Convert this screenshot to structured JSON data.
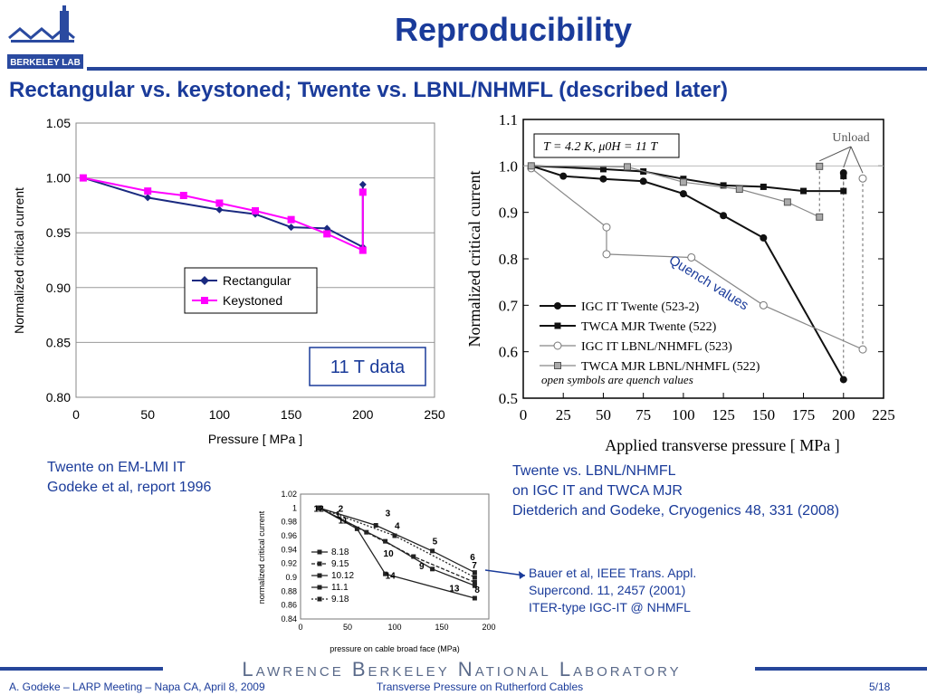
{
  "header": {
    "title": "Reproducibility",
    "subtitle": "Rectangular vs. keystoned; Twente vs. LBNL/NHMFL (described later)",
    "logo_text": "BERKELEY LAB"
  },
  "captions": {
    "twente_1": "Twente on EM-LMI IT",
    "twente_2": "Godeke et al, report 1996",
    "lbnl_1": "Twente vs. LBNL/NHMFL",
    "lbnl_2": "on IGC IT and TWCA MJR",
    "lbnl_3": "Dietderich and Godeke, Cryogenics 48, 331 (2008)",
    "bauer_1": "Bauer et al, IEEE Trans. Appl.",
    "bauer_2": "Supercond. 11, 2457 (2001)",
    "bauer_3": "ITER-type IGC-IT @ NHMFL"
  },
  "footer": {
    "lab_name": "Lawrence Berkeley National Laboratory",
    "left": "A. Godeke – LARP Meeting – Napa CA, April 8, 2009",
    "middle": "Transverse Pressure on Rutherford Cables",
    "right": "5/18"
  },
  "colors": {
    "accent": "#1a3b9a",
    "rectangular": "#1a2a80",
    "keystoned": "#ff00ff"
  },
  "chart_data": [
    {
      "type": "line",
      "ylabel": "Normalized critical current",
      "xlabel": "Pressure [ MPa ]",
      "xlim": [
        0,
        250
      ],
      "ylim": [
        0.8,
        1.05
      ],
      "xticks": [
        "0",
        "50",
        "100",
        "150",
        "200",
        "250"
      ],
      "yticks": [
        "0.80",
        "0.85",
        "0.90",
        "0.95",
        "1.00",
        "1.05"
      ],
      "legend": "center-right",
      "annotation": "11 T data",
      "series": [
        {
          "name": "Rectangular",
          "color": "#1a2a80",
          "marker": "diamond",
          "x": [
            5,
            50,
            100,
            125,
            150,
            175,
            200
          ],
          "y": [
            1.0,
            0.982,
            0.971,
            0.967,
            0.955,
            0.954,
            0.937
          ],
          "unload": {
            "x": 200,
            "y": 0.994
          }
        },
        {
          "name": "Keystoned",
          "color": "#ff00ff",
          "marker": "square",
          "x": [
            5,
            50,
            75,
            100,
            125,
            150,
            175,
            200
          ],
          "y": [
            1.0,
            0.988,
            0.984,
            0.977,
            0.97,
            0.962,
            0.949,
            0.934
          ],
          "unload": {
            "x": 200,
            "y": 0.987
          }
        }
      ]
    },
    {
      "type": "line",
      "ylabel": "Normalized critical current",
      "xlabel": "Applied transverse pressure [ MPa ]",
      "xlim": [
        0,
        225
      ],
      "ylim": [
        0.5,
        1.1
      ],
      "xticks": [
        "0",
        "25",
        "50",
        "75",
        "100",
        "125",
        "150",
        "175",
        "200",
        "225"
      ],
      "yticks": [
        "0.5",
        "0.6",
        "0.7",
        "0.8",
        "0.9",
        "1.0",
        "1.1"
      ],
      "condition": "T = 4.2 K, μ0H = 11 T",
      "unload_label": "Unload",
      "quench_label": "Quench values",
      "legend_note": "open symbols are quench values",
      "series": [
        {
          "name": "IGC IT Twente (523-2)",
          "marker": "circle-filled",
          "color": "#111111",
          "x": [
            5,
            25,
            50,
            75,
            100,
            125,
            150,
            200
          ],
          "y": [
            1.0,
            0.978,
            0.972,
            0.967,
            0.94,
            0.893,
            0.845,
            0.54
          ],
          "unload": {
            "x": 200,
            "y": 0.985
          }
        },
        {
          "name": "TWCA MJR Twente (522)",
          "marker": "square-filled",
          "color": "#111111",
          "x": [
            5,
            50,
            75,
            100,
            125,
            150,
            175,
            200
          ],
          "y": [
            1.0,
            0.993,
            0.988,
            0.972,
            0.958,
            0.955,
            0.946,
            0.946
          ],
          "unload": {
            "x": 200,
            "y": 0.978
          }
        },
        {
          "name": "IGC IT LBNL/NHMFL (523)",
          "marker": "circle-open",
          "color": "#888888",
          "x": [
            5,
            52,
            52,
            105,
            150,
            212
          ],
          "y": [
            0.995,
            0.868,
            0.81,
            0.803,
            0.7,
            0.605
          ],
          "unload": {
            "x": 212,
            "y": 0.973
          }
        },
        {
          "name": "TWCA MJR LBNL/NHMFL (522)",
          "marker": "square-gray",
          "color": "#888888",
          "x": [
            5,
            65,
            100,
            135,
            165,
            185
          ],
          "y": [
            1.0,
            0.998,
            0.965,
            0.95,
            0.922,
            0.89
          ],
          "unload": {
            "x": 185,
            "y": 0.999
          }
        }
      ]
    },
    {
      "type": "line",
      "ylabel": "normalized critical current",
      "xlabel": "pressure on cable broad face (MPa)",
      "xlim": [
        0,
        200
      ],
      "ylim": [
        0.84,
        1.02
      ],
      "xticks": [
        "0",
        "50",
        "100",
        "150",
        "200"
      ],
      "yticks": [
        "0.84",
        "0.86",
        "0.88",
        "0.9",
        "0.92",
        "0.94",
        "0.96",
        "0.98",
        "1",
        "1.02"
      ],
      "legend": "left",
      "point_labels": [
        "12",
        "2",
        "3",
        "4",
        "5",
        "6",
        "7",
        "8",
        "9",
        "10",
        "11",
        "13",
        "14",
        "1"
      ],
      "series": [
        {
          "name": "8.18",
          "x": [
            20,
            80,
            140,
            185
          ],
          "y": [
            1.0,
            0.975,
            0.938,
            0.907
          ]
        },
        {
          "name": "9.15",
          "x": [
            20,
            70,
            120,
            185
          ],
          "y": [
            1.0,
            0.965,
            0.93,
            0.893
          ]
        },
        {
          "name": "10.12",
          "x": [
            20,
            90,
            140,
            185
          ],
          "y": [
            1.0,
            0.952,
            0.912,
            0.888
          ]
        },
        {
          "name": "11.1",
          "x": [
            20,
            60,
            90,
            185
          ],
          "y": [
            1.0,
            0.97,
            0.905,
            0.87
          ]
        },
        {
          "name": "9.18",
          "x": [
            20,
            100,
            185
          ],
          "y": [
            1.0,
            0.96,
            0.9
          ]
        }
      ]
    }
  ]
}
